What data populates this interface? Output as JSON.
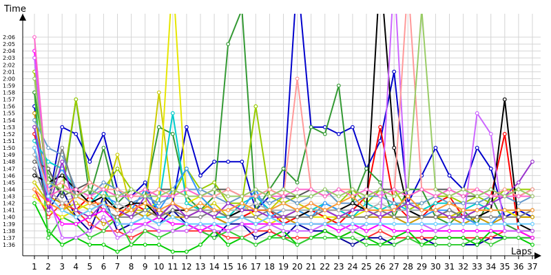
{
  "chart_data": {
    "type": "line",
    "xlabel": "Laps",
    "ylabel": "Time",
    "x": [
      1,
      2,
      3,
      4,
      5,
      6,
      7,
      8,
      9,
      10,
      11,
      12,
      13,
      14,
      15,
      16,
      17,
      18,
      19,
      20,
      21,
      22,
      23,
      24,
      25,
      26,
      27,
      28,
      29,
      30,
      31,
      32,
      33,
      34,
      35,
      36,
      37
    ],
    "x_tick_labels": [
      "1",
      "2",
      "3",
      "4",
      "5",
      "6",
      "7",
      "8",
      "9",
      "10",
      "11",
      "12",
      "13",
      "14",
      "15",
      "16",
      "17",
      "18",
      "19",
      "20",
      "21",
      "22",
      "23",
      "24",
      "25",
      "26",
      "27",
      "28",
      "29",
      "30",
      "31",
      "32",
      "33",
      "34",
      "35",
      "36",
      "37"
    ],
    "y_unit": "seconds",
    "y_tick_labels": [
      "1:36",
      "1:37",
      "1:38",
      "1:39",
      "1:40",
      "1:41",
      "1:42",
      "1:43",
      "1:44",
      "1:45",
      "1:46",
      "1:47",
      "1:48",
      "1:49",
      "1:50",
      "1:51",
      "1:52",
      "1:53",
      "1:54",
      "1:55",
      "1:56",
      "1:57",
      "1:58",
      "1:59",
      "2:00",
      "2:01",
      "2:02",
      "2:03",
      "2:04",
      "2:05",
      "2:06"
    ],
    "ylim": [
      96,
      126
    ],
    "xlim": [
      1,
      37
    ],
    "grid": true,
    "legend": "none",
    "series": [
      {
        "color": "#0000cc",
        "values": [
          116,
          102,
          113,
          112,
          108,
          112,
          104,
          103,
          105,
          100,
          102,
          113,
          106,
          108,
          108,
          108,
          101,
          103,
          104,
          135,
          113,
          113,
          112,
          113,
          107,
          111,
          121,
          102,
          106,
          110,
          106,
          104,
          110,
          107,
          100,
          101,
          100
        ]
      },
      {
        "color": "#000099",
        "values": [
          110,
          101,
          104,
          100,
          98,
          103,
          98,
          99,
          100,
          99,
          101,
          99,
          98,
          97,
          99,
          99,
          97,
          98,
          97,
          99,
          98,
          98,
          97,
          96,
          97,
          97,
          96,
          97,
          97,
          96,
          96,
          96,
          96,
          97,
          97,
          97,
          97
        ]
      },
      {
        "color": "#ff0000",
        "values": [
          112,
          104,
          102,
          101,
          103,
          101,
          100,
          102,
          101,
          100,
          102,
          101,
          101,
          100,
          99,
          100,
          101,
          101,
          99,
          100,
          101,
          100,
          99,
          101,
          103,
          113,
          102,
          100,
          100,
          102,
          103,
          100,
          99,
          103,
          112,
          98,
          97
        ]
      },
      {
        "color": "#ff3333",
        "values": [
          104,
          100,
          102,
          101,
          99,
          98,
          98,
          97,
          98,
          98,
          98,
          98,
          98,
          98,
          97,
          97,
          98,
          98,
          97,
          97,
          97,
          98,
          97,
          98,
          97,
          98,
          97,
          97,
          97,
          97,
          97,
          97,
          97,
          97,
          98,
          98,
          98
        ]
      },
      {
        "color": "#00cc00",
        "values": [
          102,
          98,
          96,
          97,
          96,
          96,
          95,
          96,
          96,
          96,
          95,
          95,
          96,
          98,
          96,
          97,
          96,
          97,
          98,
          96,
          97,
          98,
          97,
          98,
          97,
          96,
          97,
          98,
          96,
          97,
          97,
          97,
          96,
          98,
          97,
          97,
          96
        ]
      },
      {
        "color": "#33cc33",
        "values": [
          118,
          97,
          100,
          99,
          97,
          98,
          100,
          96,
          98,
          97,
          98,
          99,
          98,
          97,
          98,
          97,
          96,
          97,
          97,
          96,
          97,
          97,
          97,
          97,
          96,
          96,
          96,
          97,
          96,
          96,
          96,
          96,
          97,
          96,
          97,
          97,
          97
        ]
      },
      {
        "color": "#339933",
        "values": [
          118,
          106,
          103,
          117,
          103,
          110,
          102,
          104,
          103,
          113,
          112,
          103,
          101,
          103,
          125,
          130,
          101,
          104,
          107,
          105,
          113,
          112,
          119,
          102,
          107,
          105,
          100,
          104,
          104,
          100,
          99,
          101,
          99,
          103,
          99,
          98,
          98
        ]
      },
      {
        "color": "#99cc00",
        "values": [
          121,
          103,
          104,
          117,
          105,
          104,
          107,
          104,
          103,
          102,
          103,
          107,
          104,
          105,
          102,
          102,
          116,
          103,
          102,
          103,
          103,
          104,
          102,
          104,
          102,
          104,
          104,
          101,
          102,
          103,
          103,
          102,
          103,
          102,
          104,
          104,
          104
        ]
      },
      {
        "color": "#cccc00",
        "values": [
          105,
          102,
          101,
          102,
          101,
          102,
          109,
          101,
          101,
          118,
          102,
          101,
          101,
          102,
          100,
          101,
          101,
          101,
          103,
          102,
          101,
          101,
          101,
          101,
          101,
          101,
          100,
          100,
          100,
          100,
          100,
          101,
          101,
          101,
          101,
          100,
          100
        ]
      },
      {
        "color": "#e6e600",
        "values": [
          103,
          101,
          100,
          101,
          102,
          101,
          100,
          101,
          100,
          103,
          135,
          102,
          103,
          101,
          100,
          102,
          100,
          99,
          100,
          101,
          100,
          100,
          100,
          100,
          101,
          100,
          100,
          100,
          100,
          100,
          100,
          100,
          101,
          101,
          101,
          100,
          100
        ]
      },
      {
        "color": "#cc9900",
        "values": [
          115,
          103,
          102,
          100,
          101,
          99,
          100,
          101,
          100,
          101,
          100,
          100,
          101,
          100,
          99,
          100,
          99,
          100,
          100,
          99,
          99,
          99,
          100,
          100,
          100,
          100,
          100,
          99,
          100,
          100,
          100,
          99,
          100,
          99,
          100,
          100,
          100
        ]
      },
      {
        "color": "#00cccc",
        "values": [
          111,
          108,
          107,
          104,
          102,
          104,
          101,
          100,
          101,
          102,
          115,
          102,
          101,
          100,
          100,
          102,
          103,
          101,
          102,
          101,
          101,
          102,
          101,
          100,
          102,
          101,
          102,
          101,
          101,
          102,
          102,
          101,
          102,
          101,
          101,
          101,
          101
        ]
      },
      {
        "color": "#3399ff",
        "values": [
          113,
          104,
          107,
          103,
          104,
          103,
          102,
          101,
          104,
          101,
          104,
          107,
          103,
          101,
          100,
          101,
          104,
          100,
          101,
          101,
          100,
          102,
          101,
          101,
          101,
          100,
          101,
          101,
          100,
          101,
          101,
          100,
          99,
          99,
          101,
          101,
          101
        ]
      },
      {
        "color": "#6699cc",
        "values": [
          114,
          110,
          109,
          104,
          103,
          105,
          104,
          102,
          103,
          102,
          103,
          104,
          104,
          103,
          102,
          103,
          103,
          102,
          103,
          102,
          103,
          104,
          102,
          102,
          103,
          103,
          102,
          102,
          102,
          103,
          102,
          102,
          102,
          103,
          103,
          102,
          103
        ]
      },
      {
        "color": "#000000",
        "values": [
          106,
          105,
          106,
          104,
          102,
          103,
          101,
          102,
          102,
          100,
          101,
          101,
          101,
          101,
          100,
          101,
          101,
          101,
          100,
          100,
          101,
          101,
          101,
          102,
          101,
          136,
          110,
          101,
          100,
          100,
          101,
          100,
          100,
          101,
          117,
          99,
          98
        ]
      },
      {
        "color": "#555555",
        "values": [
          108,
          107,
          103,
          104,
          105,
          104,
          103,
          103,
          103,
          104,
          104,
          103,
          103,
          104,
          104,
          103,
          103,
          104,
          103,
          103,
          104,
          103,
          104,
          104,
          103,
          104,
          104,
          103,
          104,
          104,
          104,
          103,
          103,
          104,
          103,
          103,
          104
        ]
      },
      {
        "color": "#808080",
        "values": [
          107,
          102,
          110,
          103,
          102,
          101,
          100,
          100,
          101,
          100,
          101,
          100,
          100,
          101,
          100,
          100,
          100,
          101,
          100,
          100,
          100,
          101,
          100,
          100,
          100,
          101,
          100,
          100,
          100,
          100,
          101,
          100,
          100,
          100,
          100,
          100,
          101
        ]
      },
      {
        "color": "#b3b3b3",
        "values": [
          109,
          104,
          102,
          103,
          102,
          101,
          102,
          101,
          102,
          101,
          102,
          101,
          101,
          101,
          101,
          101,
          102,
          101,
          101,
          101,
          101,
          101,
          101,
          101,
          101,
          102,
          101,
          101,
          101,
          101,
          102,
          101,
          101,
          101,
          101,
          101,
          101
        ]
      },
      {
        "color": "#ff00ff",
        "values": [
          124,
          102,
          99,
          99,
          100,
          101,
          99,
          99,
          99,
          100,
          99,
          99,
          98,
          99,
          98,
          99,
          99,
          99,
          99,
          99,
          99,
          99,
          98,
          99,
          98,
          99,
          98,
          98,
          98,
          98,
          98,
          98,
          98,
          98,
          98,
          98,
          97
        ]
      },
      {
        "color": "#cc66ff",
        "values": [
          123,
          103,
          97,
          97,
          98,
          100,
          97,
          98,
          99,
          98,
          98,
          98,
          99,
          98,
          98,
          99,
          98,
          99,
          98,
          98,
          98,
          99,
          99,
          98,
          99,
          99,
          135,
          99,
          99,
          98,
          99,
          99,
          115,
          112,
          98,
          98,
          98
        ]
      },
      {
        "color": "#9933cc",
        "values": [
          113,
          101,
          108,
          101,
          100,
          102,
          101,
          100,
          103,
          100,
          102,
          100,
          101,
          100,
          102,
          101,
          101,
          100,
          100,
          101,
          102,
          101,
          100,
          101,
          101,
          100,
          101,
          102,
          101,
          101,
          100,
          100,
          101,
          102,
          103,
          105,
          108
        ]
      },
      {
        "color": "#ff9999",
        "values": [
          110,
          104,
          105,
          103,
          105,
          104,
          104,
          103,
          103,
          104,
          103,
          104,
          103,
          103,
          104,
          103,
          103,
          104,
          103,
          120,
          104,
          103,
          104,
          104,
          103,
          104,
          103,
          134,
          104,
          104,
          103,
          104,
          104,
          103,
          104,
          103,
          104
        ]
      },
      {
        "color": "#ff66cc",
        "values": [
          126,
          103,
          104,
          104,
          103,
          104,
          103,
          103,
          104,
          103,
          103,
          104,
          103,
          104,
          103,
          103,
          104,
          103,
          103,
          104,
          104,
          103,
          104,
          103,
          104,
          103,
          104,
          103,
          104,
          103,
          104,
          103,
          104,
          103,
          103,
          103,
          103
        ]
      },
      {
        "color": "#ff9933",
        "values": [
          104,
          102,
          101,
          103,
          102,
          102,
          101,
          101,
          102,
          101,
          102,
          101,
          102,
          101,
          101,
          102,
          101,
          101,
          102,
          101,
          102,
          101,
          102,
          103,
          101,
          101,
          101,
          103,
          101,
          101,
          102,
          101,
          101,
          101,
          101,
          101,
          101
        ]
      },
      {
        "color": "#66ccff",
        "values": [
          110,
          103,
          101,
          100,
          101,
          102,
          99,
          99,
          100,
          99,
          100,
          99,
          99,
          99,
          99,
          100,
          99,
          100,
          99,
          99,
          99,
          99,
          99,
          99,
          99,
          99,
          99,
          99,
          99,
          99,
          99,
          99,
          99,
          99,
          99,
          99,
          99
        ]
      },
      {
        "color": "#99cc66",
        "values": [
          120,
          105,
          104,
          103,
          104,
          103,
          103,
          104,
          103,
          103,
          104,
          103,
          103,
          104,
          103,
          103,
          104,
          103,
          104,
          103,
          103,
          104,
          103,
          104,
          103,
          104,
          103,
          104,
          130,
          104,
          103,
          104,
          103,
          104,
          103,
          104,
          103
        ]
      }
    ]
  }
}
